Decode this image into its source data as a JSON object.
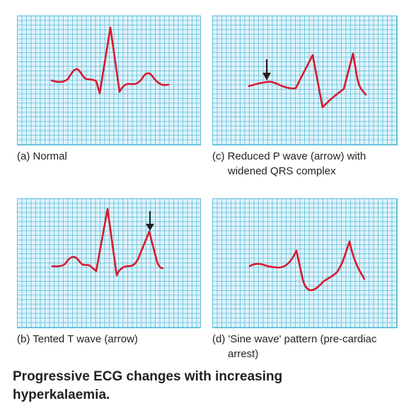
{
  "colors": {
    "grid_background": "#dff3fb",
    "grid_line": "#5cbcd9",
    "trace": "#d7192e",
    "arrow": "#231f20"
  },
  "panels": [
    {
      "id": "a",
      "caption_line1": "(a) Normal",
      "caption_line2": "",
      "arrow": false
    },
    {
      "id": "b",
      "caption_line1": "(b) Tented T wave (arrow)",
      "caption_line2": "",
      "arrow": true
    },
    {
      "id": "c",
      "caption_line1": "(c) Reduced P wave (arrow) with",
      "caption_line2": "widened QRS complex",
      "arrow": true
    },
    {
      "id": "d",
      "caption_line1": "(d) 'Sine wave' pattern (pre-cardiac",
      "caption_line2": "arrest)",
      "arrow": false
    }
  ],
  "title_line1": "Progressive ECG changes with increasing",
  "title_line2": "hyperkalaemia."
}
